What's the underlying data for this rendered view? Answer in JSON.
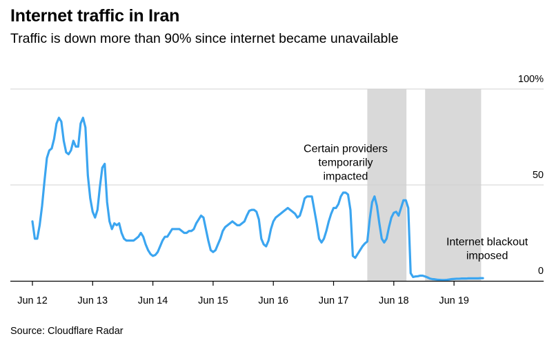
{
  "header": {
    "title": "Internet traffic in Iran",
    "subtitle": "Traffic is down more than 90% since internet became unavailable"
  },
  "footer": {
    "source": "Source: Cloudflare Radar"
  },
  "chart_data": {
    "type": "line",
    "title": "Internet traffic in Iran",
    "subtitle": "Traffic is down more than 90% since internet became unavailable",
    "xlabel": "",
    "ylabel": "",
    "y_unit": "% of normal traffic",
    "ylim": [
      0,
      100
    ],
    "xlim": [
      0,
      8.3
    ],
    "grid": "horizontal",
    "line_color": "#3ba5f0",
    "shade_color": "#d9d9d9",
    "grid_color": "#d0d0d0",
    "x_ticks": [
      {
        "x": 0,
        "label": "Jun 12"
      },
      {
        "x": 1,
        "label": "Jun 13"
      },
      {
        "x": 2,
        "label": "Jun 14"
      },
      {
        "x": 3,
        "label": "Jun 15"
      },
      {
        "x": 4,
        "label": "Jun 16"
      },
      {
        "x": 5,
        "label": "Jun 17"
      },
      {
        "x": 6,
        "label": "Jun 18"
      },
      {
        "x": 7,
        "label": "Jun 19"
      }
    ],
    "y_ticks": [
      {
        "y": 0,
        "label": "0"
      },
      {
        "y": 50,
        "label": "50"
      },
      {
        "y": 100,
        "label": "100%"
      }
    ],
    "shaded_ranges": [
      {
        "x0": 5.56,
        "x1": 6.21
      },
      {
        "x0": 6.52,
        "x1": 7.45
      }
    ],
    "annotations": [
      {
        "x": 5.2,
        "y": 67,
        "lines": [
          "Certain providers",
          "temporarily",
          "impacted"
        ]
      },
      {
        "x": 7.55,
        "y": 18.5,
        "lines": [
          "Internet blackout",
          "imposed"
        ]
      }
    ],
    "series": [
      {
        "name": "Internet traffic in Iran",
        "points": [
          [
            0.0,
            31
          ],
          [
            0.04,
            22
          ],
          [
            0.08,
            22
          ],
          [
            0.12,
            29
          ],
          [
            0.16,
            39
          ],
          [
            0.2,
            52
          ],
          [
            0.24,
            64
          ],
          [
            0.28,
            68
          ],
          [
            0.32,
            69
          ],
          [
            0.36,
            74
          ],
          [
            0.4,
            82
          ],
          [
            0.44,
            85
          ],
          [
            0.48,
            83
          ],
          [
            0.52,
            73
          ],
          [
            0.56,
            67
          ],
          [
            0.6,
            66
          ],
          [
            0.64,
            68
          ],
          [
            0.68,
            73
          ],
          [
            0.72,
            70
          ],
          [
            0.76,
            70
          ],
          [
            0.8,
            82
          ],
          [
            0.84,
            85
          ],
          [
            0.88,
            80
          ],
          [
            0.92,
            55
          ],
          [
            0.96,
            43
          ],
          [
            1.0,
            36
          ],
          [
            1.04,
            33
          ],
          [
            1.08,
            37
          ],
          [
            1.12,
            49
          ],
          [
            1.16,
            59
          ],
          [
            1.2,
            61
          ],
          [
            1.24,
            41
          ],
          [
            1.28,
            31
          ],
          [
            1.32,
            27
          ],
          [
            1.36,
            30
          ],
          [
            1.4,
            29
          ],
          [
            1.44,
            30
          ],
          [
            1.48,
            25
          ],
          [
            1.52,
            22
          ],
          [
            1.56,
            21
          ],
          [
            1.6,
            21
          ],
          [
            1.64,
            21
          ],
          [
            1.68,
            21
          ],
          [
            1.72,
            22
          ],
          [
            1.76,
            23
          ],
          [
            1.8,
            25
          ],
          [
            1.84,
            23
          ],
          [
            1.88,
            19
          ],
          [
            1.92,
            16
          ],
          [
            1.96,
            14
          ],
          [
            2.0,
            13
          ],
          [
            2.04,
            13.5
          ],
          [
            2.08,
            15
          ],
          [
            2.12,
            18
          ],
          [
            2.16,
            21
          ],
          [
            2.2,
            23
          ],
          [
            2.24,
            23
          ],
          [
            2.28,
            25
          ],
          [
            2.32,
            27
          ],
          [
            2.36,
            27
          ],
          [
            2.4,
            27
          ],
          [
            2.44,
            27
          ],
          [
            2.48,
            26
          ],
          [
            2.52,
            25
          ],
          [
            2.56,
            25
          ],
          [
            2.6,
            26
          ],
          [
            2.64,
            26
          ],
          [
            2.68,
            27
          ],
          [
            2.72,
            30
          ],
          [
            2.76,
            32
          ],
          [
            2.8,
            34
          ],
          [
            2.84,
            33
          ],
          [
            2.88,
            27
          ],
          [
            2.92,
            21
          ],
          [
            2.96,
            16
          ],
          [
            3.0,
            15
          ],
          [
            3.04,
            16
          ],
          [
            3.08,
            19
          ],
          [
            3.12,
            22
          ],
          [
            3.16,
            26
          ],
          [
            3.2,
            28
          ],
          [
            3.24,
            29
          ],
          [
            3.28,
            30
          ],
          [
            3.32,
            31
          ],
          [
            3.36,
            30
          ],
          [
            3.4,
            29
          ],
          [
            3.44,
            29
          ],
          [
            3.48,
            30
          ],
          [
            3.52,
            31
          ],
          [
            3.56,
            34
          ],
          [
            3.6,
            36.5
          ],
          [
            3.64,
            37
          ],
          [
            3.68,
            37
          ],
          [
            3.72,
            36
          ],
          [
            3.76,
            32
          ],
          [
            3.8,
            22
          ],
          [
            3.84,
            19
          ],
          [
            3.88,
            18
          ],
          [
            3.92,
            21
          ],
          [
            3.96,
            27
          ],
          [
            4.0,
            31
          ],
          [
            4.04,
            33
          ],
          [
            4.08,
            34
          ],
          [
            4.12,
            35
          ],
          [
            4.16,
            36
          ],
          [
            4.2,
            37
          ],
          [
            4.24,
            38
          ],
          [
            4.28,
            37
          ],
          [
            4.32,
            36
          ],
          [
            4.36,
            35
          ],
          [
            4.4,
            33
          ],
          [
            4.44,
            34
          ],
          [
            4.48,
            38
          ],
          [
            4.52,
            43
          ],
          [
            4.56,
            44
          ],
          [
            4.6,
            44
          ],
          [
            4.64,
            44
          ],
          [
            4.68,
            37
          ],
          [
            4.72,
            30
          ],
          [
            4.76,
            22
          ],
          [
            4.8,
            20
          ],
          [
            4.84,
            22
          ],
          [
            4.88,
            26
          ],
          [
            4.92,
            31
          ],
          [
            4.96,
            35
          ],
          [
            5.0,
            38
          ],
          [
            5.04,
            38
          ],
          [
            5.08,
            40
          ],
          [
            5.12,
            44
          ],
          [
            5.16,
            46
          ],
          [
            5.2,
            46
          ],
          [
            5.24,
            45
          ],
          [
            5.28,
            37
          ],
          [
            5.32,
            13
          ],
          [
            5.36,
            12
          ],
          [
            5.4,
            14
          ],
          [
            5.44,
            16
          ],
          [
            5.48,
            18
          ],
          [
            5.52,
            19.5
          ],
          [
            5.56,
            20.5
          ],
          [
            5.6,
            32
          ],
          [
            5.64,
            41
          ],
          [
            5.68,
            44
          ],
          [
            5.72,
            39
          ],
          [
            5.76,
            30
          ],
          [
            5.8,
            22
          ],
          [
            5.84,
            20
          ],
          [
            5.88,
            22
          ],
          [
            5.92,
            28
          ],
          [
            5.96,
            33
          ],
          [
            6.0,
            35.5
          ],
          [
            6.04,
            36
          ],
          [
            6.08,
            34
          ],
          [
            6.12,
            38
          ],
          [
            6.16,
            42
          ],
          [
            6.2,
            42
          ],
          [
            6.24,
            38
          ],
          [
            6.28,
            4
          ],
          [
            6.32,
            2
          ],
          [
            6.36,
            2.3
          ],
          [
            6.4,
            2.4
          ],
          [
            6.44,
            2.7
          ],
          [
            6.48,
            2.7
          ],
          [
            6.52,
            2.3
          ],
          [
            6.56,
            1.8
          ],
          [
            6.6,
            1.2
          ],
          [
            6.64,
            0.9
          ],
          [
            6.68,
            0.8
          ],
          [
            6.72,
            0.6
          ],
          [
            6.76,
            0.5
          ],
          [
            6.8,
            0.4
          ],
          [
            6.84,
            0.4
          ],
          [
            6.88,
            0.5
          ],
          [
            6.92,
            0.7
          ],
          [
            6.96,
            0.9
          ],
          [
            7.0,
            1.0
          ],
          [
            7.04,
            1.1
          ],
          [
            7.08,
            1.1
          ],
          [
            7.12,
            1.2
          ],
          [
            7.16,
            1.2
          ],
          [
            7.2,
            1.2
          ],
          [
            7.24,
            1.3
          ],
          [
            7.28,
            1.3
          ],
          [
            7.32,
            1.3
          ],
          [
            7.36,
            1.3
          ],
          [
            7.4,
            1.3
          ],
          [
            7.44,
            1.4
          ],
          [
            7.48,
            1.4
          ]
        ]
      }
    ]
  }
}
